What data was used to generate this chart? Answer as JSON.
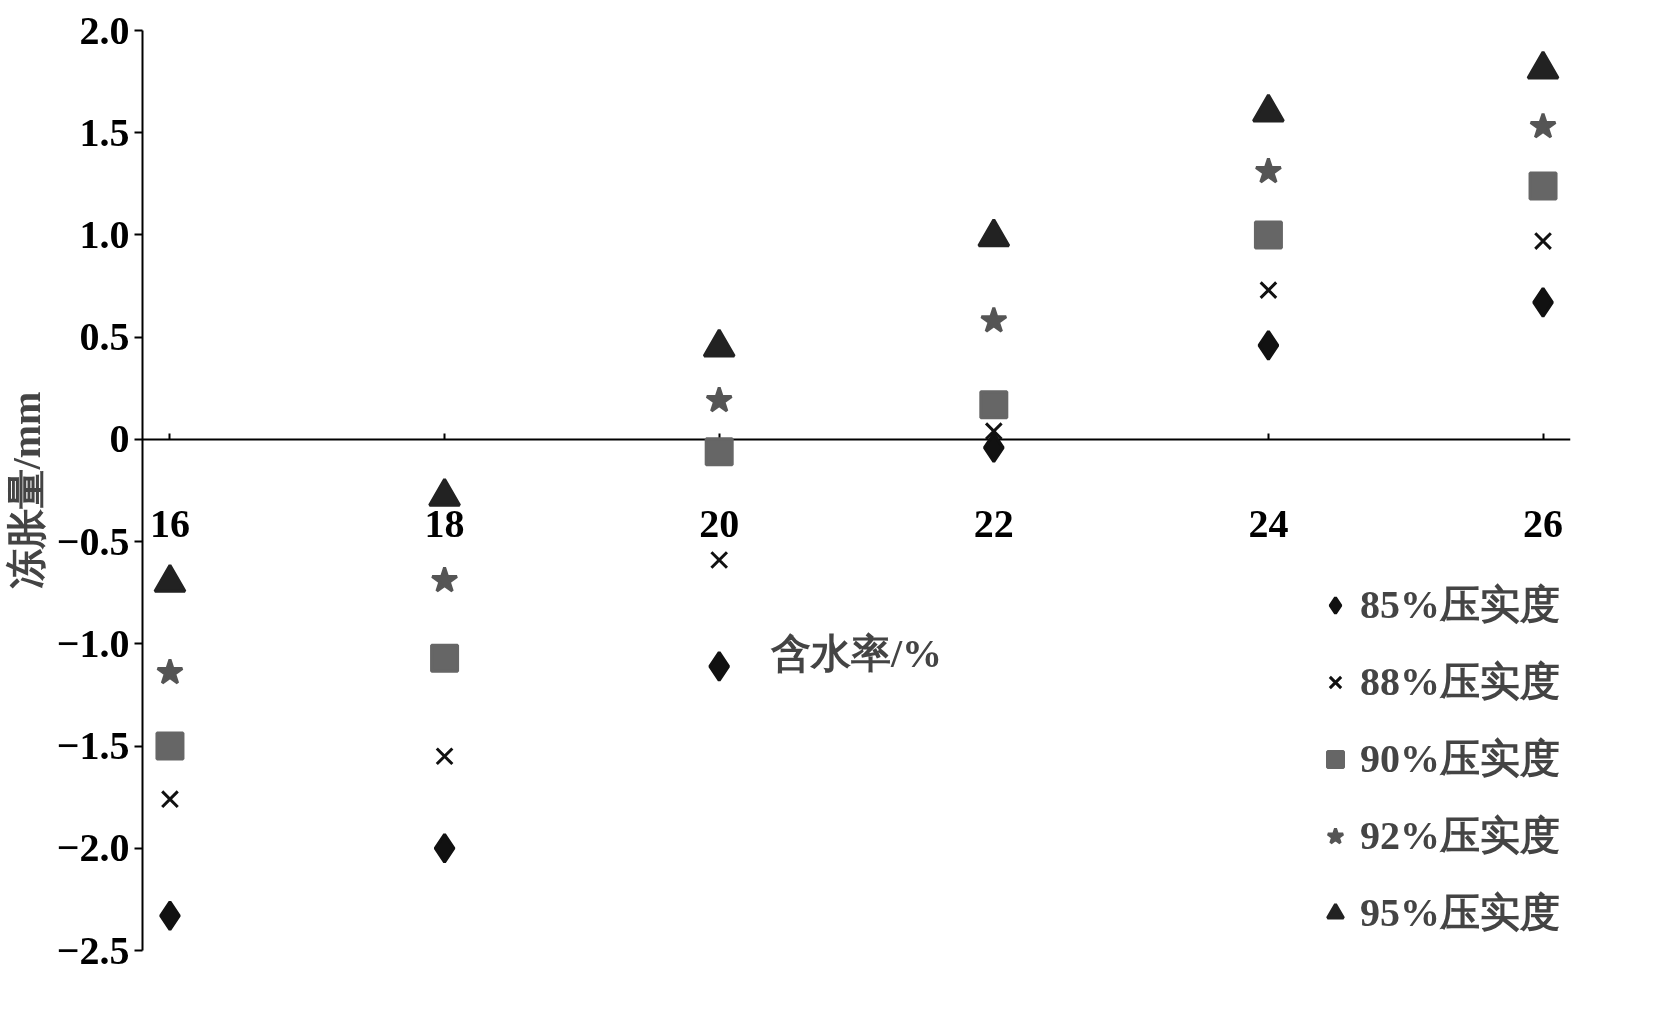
{
  "chart_data": {
    "type": "scatter",
    "xlabel": "含水率/%",
    "ylabel": "冻胀量/mm",
    "x": [
      16,
      18,
      20,
      22,
      24,
      26
    ],
    "series": [
      {
        "name": "85%压实度",
        "color": "#111111",
        "marker": "diamond",
        "values": [
          -2.33,
          -2.0,
          -1.11,
          -0.04,
          0.46,
          0.67
        ]
      },
      {
        "name": "88%压实度",
        "color": "#111111",
        "marker": "cross",
        "values": [
          -1.76,
          -1.55,
          -0.59,
          0.04,
          0.73,
          0.97
        ]
      },
      {
        "name": "90%压实度",
        "color": "#666666",
        "marker": "square",
        "values": [
          -1.5,
          -1.07,
          -0.06,
          0.17,
          1.0,
          1.24
        ]
      },
      {
        "name": "92%压实度",
        "color": "#555555",
        "marker": "star",
        "values": [
          -1.14,
          -0.69,
          0.19,
          0.58,
          1.31,
          1.53
        ]
      },
      {
        "name": "95%压实度",
        "color": "#222222",
        "marker": "triangle",
        "values": [
          -0.7,
          -0.28,
          0.45,
          0.99,
          1.6,
          1.81
        ]
      }
    ],
    "xlim": [
      15.8,
      26.2
    ],
    "ylim": [
      -2.5,
      2.0
    ],
    "xticks": [
      16,
      18,
      20,
      22,
      24,
      26
    ],
    "yticks": [
      {
        "value": -2.5,
        "label": "−2.5"
      },
      {
        "value": -2.0,
        "label": "−2.0"
      },
      {
        "value": -1.5,
        "label": "−1.5"
      },
      {
        "value": -1.0,
        "label": "−1.0"
      },
      {
        "value": -0.5,
        "label": "−0.5"
      },
      0,
      {
        "value": 0.5,
        "label": "0.5"
      },
      {
        "value": 1.0,
        "label": "1.0"
      },
      {
        "value": 1.5,
        "label": "1.5"
      },
      {
        "value": 2.0,
        "label": "2.0"
      }
    ],
    "grid": false,
    "legend": "bottom right"
  }
}
